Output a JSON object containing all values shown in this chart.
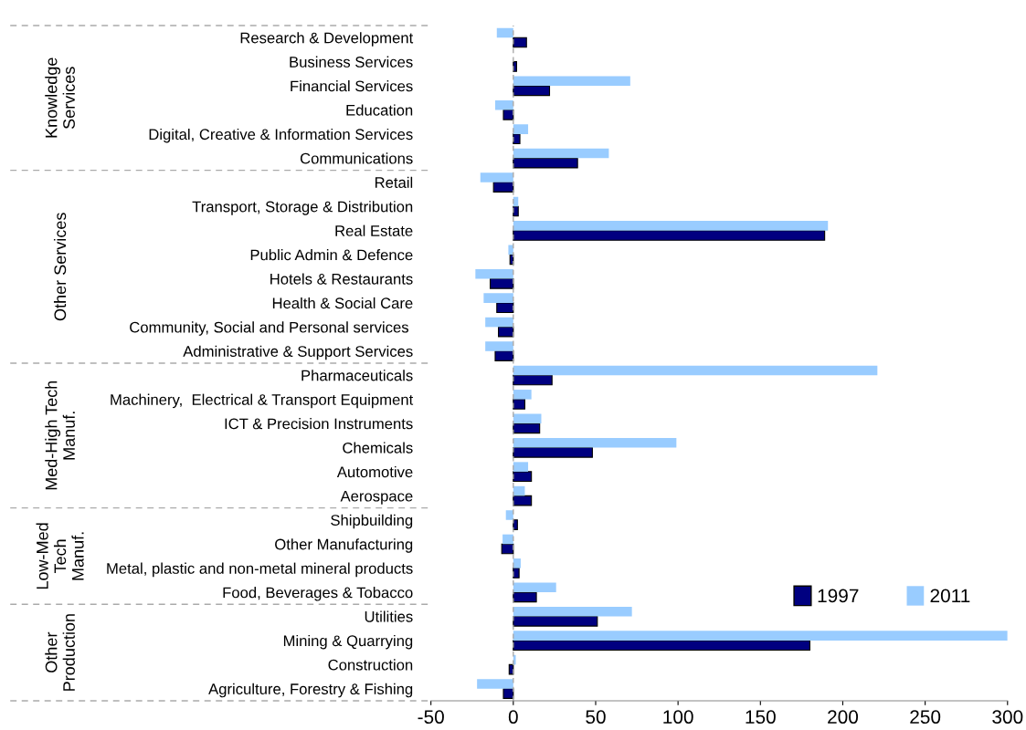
{
  "chart_data": {
    "type": "bar",
    "orientation": "horizontal",
    "categories": [
      "Research & Development",
      "Business Services",
      "Financial Services",
      "Education",
      "Digital, Creative & Information Services",
      "Communications",
      "Retail",
      "Transport, Storage & Distribution",
      "Real Estate",
      "Public Admin & Defence",
      "Hotels & Restaurants",
      "Health & Social Care",
      "Community, Social and Personal services ",
      "Administrative & Support Services",
      "Pharmaceuticals",
      "Machinery,  Electrical & Transport Equipment",
      "ICT & Precision Instruments",
      "Chemicals",
      "Automotive",
      "Aerospace",
      "Shipbuilding",
      "Other Manufacturing",
      "Metal, plastic and non-metal mineral products",
      "Food, Beverages & Tobacco",
      "Utilities",
      "Mining & Quarrying",
      "Construction",
      "Agriculture, Forestry & Fishing"
    ],
    "series": [
      {
        "name": "1997",
        "color": "#000080",
        "values": [
          8,
          2,
          22,
          -6,
          4,
          39,
          -12,
          3,
          189,
          -2,
          -14,
          -10,
          -9,
          -11,
          23.5,
          7,
          16,
          48,
          11,
          11,
          2.5,
          -7,
          3.5,
          14,
          51,
          180,
          -2.5,
          -6
        ]
      },
      {
        "name": "2011",
        "color": "#99ccff",
        "values": [
          -10,
          0,
          71,
          -11,
          9,
          58,
          -20,
          3,
          191,
          -3,
          -23,
          -18,
          -17,
          -17,
          221,
          11,
          17,
          99,
          9,
          7,
          -4.5,
          -6.5,
          4.5,
          26,
          72,
          300,
          1.5,
          -22
        ]
      }
    ],
    "xlim": [
      -50,
      300
    ],
    "xticks": [
      -50,
      0,
      50,
      100,
      150,
      200,
      250,
      300
    ],
    "annotations": [
      "Knowledge\nServices",
      "Other Services",
      "Med-High Tech\nManuf.",
      "Low-Med\nTech\nManuf.",
      "Other\nProduction"
    ],
    "ref_lines": [
      {
        "axis": "x",
        "value": 0,
        "color": "#aaaaaa",
        "line_style": "dashed"
      }
    ],
    "legend": "bottom right",
    "grid": false
  }
}
